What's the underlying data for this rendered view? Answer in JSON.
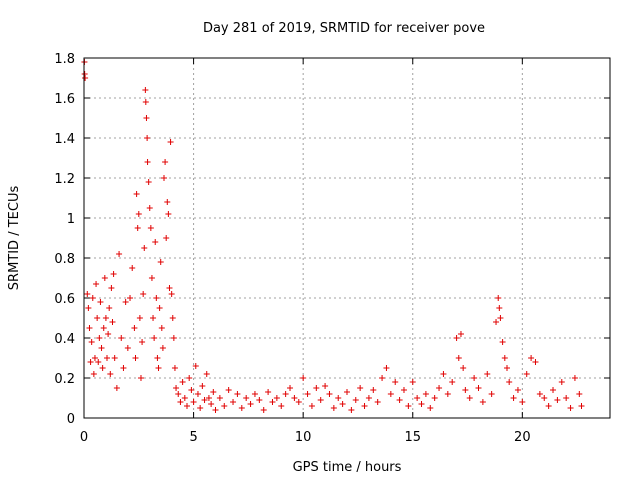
{
  "chart_data": {
    "type": "scatter",
    "title": "Day 281 of 2019, SRMTID for receiver pove",
    "xlabel": "GPS time / hours",
    "ylabel": "SRMTID / TECUs",
    "xlim": [
      0,
      24
    ],
    "ylim": [
      0,
      1.8
    ],
    "xticks": [
      0,
      5,
      10,
      15,
      20
    ],
    "xtick_labels": [
      "0",
      "5",
      "10",
      "15",
      "20"
    ],
    "yticks": [
      0,
      0.2,
      0.4,
      0.6,
      0.8,
      1.0,
      1.2,
      1.4,
      1.6,
      1.8
    ],
    "ytick_labels": [
      "0",
      "0.2",
      "0.4",
      "0.6",
      "0.8",
      "1",
      "1.2",
      "1.4",
      "1.6",
      "1.8"
    ],
    "grid": true,
    "marker": "+",
    "color": "#e00000",
    "series": [
      {
        "name": "SRMTID",
        "points": [
          [
            0.02,
            1.78
          ],
          [
            0.03,
            1.72
          ],
          [
            0.05,
            1.7
          ],
          [
            0.15,
            0.62
          ],
          [
            0.2,
            0.55
          ],
          [
            0.25,
            0.45
          ],
          [
            0.3,
            0.28
          ],
          [
            0.35,
            0.38
          ],
          [
            0.4,
            0.6
          ],
          [
            0.45,
            0.22
          ],
          [
            0.5,
            0.3
          ],
          [
            0.55,
            0.67
          ],
          [
            0.6,
            0.5
          ],
          [
            0.65,
            0.28
          ],
          [
            0.7,
            0.4
          ],
          [
            0.75,
            0.58
          ],
          [
            0.8,
            0.35
          ],
          [
            0.85,
            0.25
          ],
          [
            0.9,
            0.45
          ],
          [
            0.95,
            0.7
          ],
          [
            1.0,
            0.5
          ],
          [
            1.05,
            0.3
          ],
          [
            1.1,
            0.42
          ],
          [
            1.15,
            0.55
          ],
          [
            1.2,
            0.22
          ],
          [
            1.25,
            0.65
          ],
          [
            1.3,
            0.48
          ],
          [
            1.35,
            0.72
          ],
          [
            1.4,
            0.3
          ],
          [
            1.5,
            0.15
          ],
          [
            1.6,
            0.82
          ],
          [
            1.7,
            0.4
          ],
          [
            1.8,
            0.25
          ],
          [
            1.9,
            0.58
          ],
          [
            2.0,
            0.35
          ],
          [
            2.1,
            0.6
          ],
          [
            2.2,
            0.75
          ],
          [
            2.3,
            0.45
          ],
          [
            2.35,
            0.3
          ],
          [
            2.4,
            1.12
          ],
          [
            2.45,
            0.95
          ],
          [
            2.5,
            1.02
          ],
          [
            2.55,
            0.5
          ],
          [
            2.6,
            0.2
          ],
          [
            2.65,
            0.38
          ],
          [
            2.7,
            0.62
          ],
          [
            2.75,
            0.85
          ],
          [
            2.8,
            1.64
          ],
          [
            2.82,
            1.58
          ],
          [
            2.85,
            1.5
          ],
          [
            2.88,
            1.4
          ],
          [
            2.9,
            1.28
          ],
          [
            2.95,
            1.18
          ],
          [
            3.0,
            1.05
          ],
          [
            3.05,
            0.95
          ],
          [
            3.1,
            0.7
          ],
          [
            3.15,
            0.5
          ],
          [
            3.2,
            0.4
          ],
          [
            3.25,
            0.88
          ],
          [
            3.3,
            0.6
          ],
          [
            3.35,
            0.3
          ],
          [
            3.4,
            0.25
          ],
          [
            3.45,
            0.55
          ],
          [
            3.5,
            0.78
          ],
          [
            3.55,
            0.45
          ],
          [
            3.6,
            0.35
          ],
          [
            3.65,
            1.2
          ],
          [
            3.7,
            1.28
          ],
          [
            3.75,
            0.9
          ],
          [
            3.8,
            1.08
          ],
          [
            3.85,
            1.02
          ],
          [
            3.9,
            0.65
          ],
          [
            3.95,
            1.38
          ],
          [
            4.0,
            0.62
          ],
          [
            4.05,
            0.5
          ],
          [
            4.1,
            0.4
          ],
          [
            4.15,
            0.25
          ],
          [
            4.2,
            0.15
          ],
          [
            4.3,
            0.12
          ],
          [
            4.4,
            0.08
          ],
          [
            4.5,
            0.18
          ],
          [
            4.6,
            0.1
          ],
          [
            4.7,
            0.06
          ],
          [
            4.8,
            0.2
          ],
          [
            4.9,
            0.14
          ],
          [
            5.0,
            0.08
          ],
          [
            5.1,
            0.26
          ],
          [
            5.2,
            0.12
          ],
          [
            5.3,
            0.05
          ],
          [
            5.4,
            0.16
          ],
          [
            5.5,
            0.09
          ],
          [
            5.6,
            0.22
          ],
          [
            5.7,
            0.1
          ],
          [
            5.8,
            0.07
          ],
          [
            5.9,
            0.13
          ],
          [
            6.0,
            0.04
          ],
          [
            6.2,
            0.1
          ],
          [
            6.4,
            0.06
          ],
          [
            6.6,
            0.14
          ],
          [
            6.8,
            0.08
          ],
          [
            7.0,
            0.12
          ],
          [
            7.2,
            0.05
          ],
          [
            7.4,
            0.1
          ],
          [
            7.6,
            0.07
          ],
          [
            7.8,
            0.12
          ],
          [
            8.0,
            0.09
          ],
          [
            8.2,
            0.04
          ],
          [
            8.4,
            0.13
          ],
          [
            8.6,
            0.08
          ],
          [
            8.8,
            0.1
          ],
          [
            9.0,
            0.06
          ],
          [
            9.2,
            0.12
          ],
          [
            9.4,
            0.15
          ],
          [
            9.6,
            0.1
          ],
          [
            9.8,
            0.08
          ],
          [
            10.0,
            0.2
          ],
          [
            10.2,
            0.12
          ],
          [
            10.4,
            0.06
          ],
          [
            10.6,
            0.15
          ],
          [
            10.8,
            0.09
          ],
          [
            11.0,
            0.16
          ],
          [
            11.2,
            0.12
          ],
          [
            11.4,
            0.05
          ],
          [
            11.6,
            0.1
          ],
          [
            11.8,
            0.07
          ],
          [
            12.0,
            0.13
          ],
          [
            12.2,
            0.04
          ],
          [
            12.4,
            0.09
          ],
          [
            12.6,
            0.15
          ],
          [
            12.8,
            0.06
          ],
          [
            13.0,
            0.1
          ],
          [
            13.2,
            0.14
          ],
          [
            13.4,
            0.08
          ],
          [
            13.6,
            0.2
          ],
          [
            13.8,
            0.25
          ],
          [
            14.0,
            0.12
          ],
          [
            14.2,
            0.18
          ],
          [
            14.4,
            0.09
          ],
          [
            14.6,
            0.14
          ],
          [
            14.8,
            0.06
          ],
          [
            15.0,
            0.18
          ],
          [
            15.2,
            0.1
          ],
          [
            15.4,
            0.07
          ],
          [
            15.6,
            0.12
          ],
          [
            15.8,
            0.05
          ],
          [
            16.0,
            0.1
          ],
          [
            16.2,
            0.15
          ],
          [
            16.4,
            0.22
          ],
          [
            16.6,
            0.12
          ],
          [
            16.8,
            0.18
          ],
          [
            17.0,
            0.4
          ],
          [
            17.1,
            0.3
          ],
          [
            17.2,
            0.42
          ],
          [
            17.3,
            0.25
          ],
          [
            17.4,
            0.14
          ],
          [
            17.6,
            0.1
          ],
          [
            17.8,
            0.2
          ],
          [
            18.0,
            0.15
          ],
          [
            18.2,
            0.08
          ],
          [
            18.4,
            0.22
          ],
          [
            18.6,
            0.12
          ],
          [
            18.8,
            0.48
          ],
          [
            18.9,
            0.6
          ],
          [
            18.95,
            0.55
          ],
          [
            19.0,
            0.5
          ],
          [
            19.1,
            0.38
          ],
          [
            19.2,
            0.3
          ],
          [
            19.3,
            0.25
          ],
          [
            19.4,
            0.18
          ],
          [
            19.6,
            0.1
          ],
          [
            19.8,
            0.14
          ],
          [
            20.0,
            0.08
          ],
          [
            20.2,
            0.22
          ],
          [
            20.4,
            0.3
          ],
          [
            20.6,
            0.28
          ],
          [
            20.8,
            0.12
          ],
          [
            21.0,
            0.1
          ],
          [
            21.2,
            0.06
          ],
          [
            21.4,
            0.14
          ],
          [
            21.6,
            0.09
          ],
          [
            21.8,
            0.18
          ],
          [
            22.0,
            0.1
          ],
          [
            22.2,
            0.05
          ],
          [
            22.4,
            0.2
          ],
          [
            22.6,
            0.12
          ],
          [
            22.7,
            0.06
          ]
        ]
      }
    ]
  }
}
